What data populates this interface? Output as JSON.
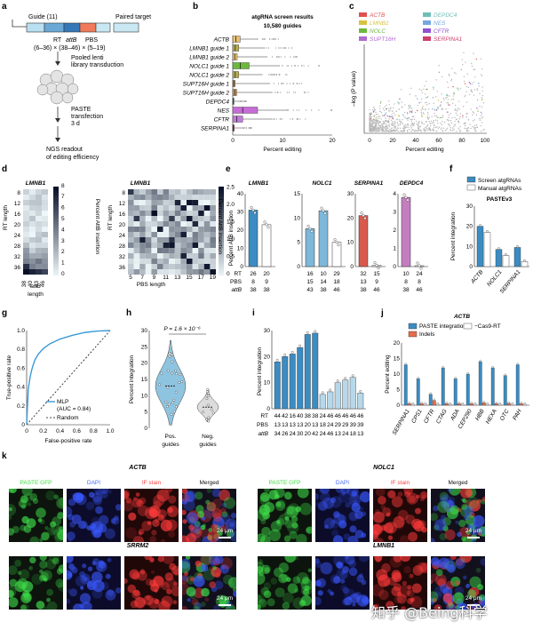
{
  "panel_letters": [
    "a",
    "b",
    "c",
    "d",
    "e",
    "f",
    "g",
    "h",
    "i",
    "j",
    "k"
  ],
  "panel_a": {
    "guide": "Guide (11)",
    "paired": "Paired target",
    "rt": "RT",
    "attb": "attB",
    "pbs": "PBS",
    "combo": "(6–36) × (38–46) × (5–19)",
    "step1": "Pooled lenti",
    "step1b": "library transduction",
    "step2": "PASTE",
    "step2b": "transfection",
    "step2c": "3 d",
    "step3": "NGS readout",
    "step3b": "of editing efficiency"
  },
  "chart_data": [
    {
      "id": "b",
      "type": "box",
      "title": "atgRNA screen results",
      "subtitle": "10,580 guides",
      "xlabel": "Percent editing",
      "xlim": [
        0,
        20
      ],
      "xticks": [
        "0",
        "10",
        "20"
      ],
      "categories": [
        "ACTB",
        "LMNB1 guide 1",
        "LMNB1 guide 2",
        "NOLC1 guide 1",
        "NOLC1 guide 2",
        "SUPT16H guide 1",
        "SUPT16H guide 2",
        "DEPDC4",
        "NES",
        "CFTR",
        "SERPINA1"
      ],
      "colors": [
        "#e8c070",
        "#b6ad52",
        "#e8c070",
        "#6cb83e",
        "#b6ad52",
        "#c99a5a",
        "#c99a5a",
        "#7ccdc4",
        "#c86cd8",
        "#c27ad8",
        "#c14d8a"
      ],
      "medians": [
        0.6,
        0.5,
        0.4,
        1.5,
        0.5,
        0.2,
        0.4,
        0.1,
        2.0,
        0.8,
        0.1
      ],
      "q3": [
        1.5,
        1.2,
        0.9,
        3.3,
        1.2,
        0.5,
        0.8,
        0.2,
        5.0,
        2.0,
        0.3
      ],
      "whisker_max": [
        5.0,
        6.5,
        7.0,
        9.5,
        6.0,
        7.5,
        8.0,
        1.5,
        11.0,
        8.0,
        2.0
      ]
    },
    {
      "id": "c",
      "type": "scatter",
      "xlabel": "Percent editing",
      "ylabel": "–log (P value)",
      "xticks": [
        "0",
        "20",
        "40",
        "60",
        "80",
        "100"
      ],
      "legend": [
        "ACTB",
        "DEPDC4",
        "LMNB1",
        "NES",
        "NOLC",
        "CFTR",
        "SUPT16H",
        "SERPINA1"
      ],
      "legend_colors": [
        "#e05050",
        "#6fbfb8",
        "#d8c340",
        "#74a8e0",
        "#6cb83e",
        "#9050d0",
        "#b06ad0",
        "#d0406c"
      ]
    },
    {
      "id": "e",
      "type": "bar",
      "ylabel": "Percent AttB insertion",
      "row_labels": [
        "RT",
        "PBS",
        "attB"
      ],
      "subplots": [
        {
          "gene": "LMNB1",
          "ylim": [
            0,
            40
          ],
          "yticks": [
            "0",
            "10",
            "20",
            "30",
            "40"
          ],
          "values": [
            31,
            23
          ],
          "colors": [
            "#3b8cc2",
            "#ffffff"
          ],
          "rt": [
            "26",
            "20"
          ],
          "pbs": [
            "8",
            "9"
          ],
          "attb": [
            "38",
            "38"
          ]
        },
        {
          "gene": "NOLC1",
          "ylim": [
            0,
            15
          ],
          "yticks": [
            "0",
            "5",
            "10",
            "15"
          ],
          "values": [
            7.8,
            11.5,
            5.0
          ],
          "colors": [
            "#7db7d9",
            "#7db7d9",
            "#ffffff"
          ],
          "rt": [
            "16",
            "10",
            "29"
          ],
          "pbs": [
            "15",
            "14",
            "18"
          ],
          "attb": [
            "43",
            "38",
            "46"
          ]
        },
        {
          "gene": "SERPINA1",
          "ylim": [
            0,
            30
          ],
          "yticks": [
            "0",
            "10",
            "20",
            "30"
          ],
          "values": [
            21,
            0.5
          ],
          "colors": [
            "#d9594c",
            "#ffffff"
          ],
          "rt": [
            "32",
            "15"
          ],
          "pbs": [
            "13",
            "9"
          ],
          "attb": [
            "38",
            "46"
          ]
        },
        {
          "gene": "DEPDC4",
          "ylim": [
            0,
            4
          ],
          "yticks": [
            "0",
            "1",
            "2",
            "3",
            "4"
          ],
          "values": [
            3.8,
            0.05
          ],
          "colors": [
            "#c47ec0",
            "#ffffff"
          ],
          "rt": [
            "10",
            "24"
          ],
          "pbs": [
            "8",
            "8"
          ],
          "attb": [
            "38",
            "46"
          ]
        }
      ]
    },
    {
      "id": "f",
      "type": "bar",
      "title": "PASTEv3",
      "ylabel": "Percent integration",
      "ylim": [
        0,
        30
      ],
      "yticks": [
        "0",
        "10",
        "20",
        "30"
      ],
      "categories": [
        "ACTB",
        "NOLC1",
        "SERPINA1"
      ],
      "legend": [
        "Screen atgRNAs",
        "Manual atgRNAs"
      ],
      "series": [
        {
          "name": "Screen atgRNAs",
          "values": [
            20,
            8.5,
            9.5
          ],
          "color": "#3b8cc2"
        },
        {
          "name": "Manual atgRNAs",
          "values": [
            17,
            5.5,
            2.5
          ],
          "color": "#ffffff"
        }
      ]
    },
    {
      "id": "g",
      "type": "line",
      "xlabel": "False-positive rate",
      "ylabel": "True-positive rate",
      "xticks": [
        "0",
        "0.2",
        "0.4",
        "0.6",
        "0.8",
        "1.0"
      ],
      "yticks": [
        "0",
        "0.2",
        "0.4",
        "0.6",
        "0.8",
        "1.0"
      ],
      "legend": [
        "MLP",
        "(AUC = 0.84)",
        "Random"
      ],
      "x": [
        0,
        0.01,
        0.02,
        0.04,
        0.06,
        0.08,
        0.1,
        0.14,
        0.2,
        0.28,
        0.4,
        0.55,
        0.7,
        0.85,
        1.0
      ],
      "y": [
        0,
        0.2,
        0.38,
        0.5,
        0.58,
        0.64,
        0.69,
        0.75,
        0.81,
        0.86,
        0.91,
        0.95,
        0.98,
        0.995,
        1.0
      ]
    },
    {
      "id": "h",
      "type": "violin",
      "ylabel": "Percent integration",
      "annotation": "P = 1.6 × 10⁻⁶",
      "categories": [
        "Pos. guides",
        "Neg. guides"
      ],
      "yticks": [
        "0",
        "5",
        "10",
        "15",
        "20",
        "25",
        "30"
      ],
      "ylim": [
        0,
        30
      ],
      "medians": [
        13,
        6.5
      ],
      "ranges": [
        [
          1,
          27
        ],
        [
          2,
          12
        ]
      ]
    },
    {
      "id": "i",
      "type": "bar",
      "ylabel": "Percent integration",
      "ylim": [
        0,
        30
      ],
      "yticks": [
        "0",
        "10",
        "20",
        "30"
      ],
      "values": [
        18,
        20,
        21,
        23.5,
        28.5,
        29,
        5.5,
        6.5,
        10,
        11,
        12,
        6
      ],
      "colors": [
        "#3b8cc2",
        "#3b8cc2",
        "#3b8cc2",
        "#3b8cc2",
        "#3b8cc2",
        "#3b8cc2",
        "#b6d8ea",
        "#b6d8ea",
        "#b6d8ea",
        "#b6d8ea",
        "#b6d8ea",
        "#b6d8ea"
      ],
      "rt": [
        "44",
        "42",
        "16",
        "40",
        "38",
        "38",
        "24",
        "46",
        "46",
        "46",
        "46",
        "46"
      ],
      "pbs": [
        "13",
        "13",
        "13",
        "13",
        "20",
        "13",
        "18",
        "24",
        "29",
        "29",
        "39",
        "39"
      ],
      "attb": [
        "34",
        "26",
        "24",
        "30",
        "20",
        "42",
        "24",
        "46",
        "13",
        "24",
        "18",
        "13"
      ],
      "row_labels": [
        "RT",
        "PBS",
        "attB"
      ]
    },
    {
      "id": "j",
      "type": "bar",
      "title": "ACTB",
      "ylabel": "Percent editing",
      "ylim": [
        0,
        20
      ],
      "yticks": [
        "0",
        "5",
        "10",
        "15",
        "20"
      ],
      "categories": [
        "SERPINA1",
        "CPS1",
        "CFTR",
        "CTAG",
        "ADA",
        "CEP290",
        "HBB",
        "HEXA",
        "OTC",
        "PAH"
      ],
      "legend": [
        "PASTE integration",
        "Indels",
        "−Cas9-RT"
      ],
      "series": [
        {
          "name": "PASTE integration",
          "values": [
            13,
            8.5,
            3.5,
            12,
            8.5,
            10,
            14,
            12,
            9.5,
            13
          ],
          "color": "#3b8cc2"
        },
        {
          "name": "Indels",
          "values": [
            0.5,
            0.5,
            1.5,
            0.5,
            0.5,
            0.5,
            0.8,
            0.5,
            0.6,
            0.5
          ],
          "color": "#e66c4c"
        },
        {
          "name": "−Cas9-RT",
          "values": [
            0.3,
            0.3,
            0.3,
            0.3,
            0.3,
            0.3,
            0.3,
            0.3,
            0.3,
            0.3
          ],
          "color": "#ffffff"
        }
      ]
    }
  ],
  "panel_d": {
    "heatmap1_title": "LMNB1",
    "heatmap2_title": "LMNB1",
    "ylabel": "RT length",
    "xlabel1": "attB",
    "xlabel1b": "length",
    "xlabel2": "PBS length",
    "cbar1_label": "Percent AttB insertion",
    "cbar2_label": "Percent AttB insertion",
    "cbar1_ticks": [
      "0",
      "1",
      "2",
      "3",
      "4",
      "5",
      "6",
      "7",
      "8"
    ],
    "cbar2_ticks": [
      "0",
      "0.5",
      "1.0",
      "1.5",
      "2.0",
      "2.5"
    ],
    "rt_ticks": [
      "8",
      "12",
      "16",
      "20",
      "24",
      "28",
      "32",
      "36"
    ],
    "attb_ticks": [
      "38",
      "40",
      "43",
      "46"
    ],
    "pbs_ticks": [
      "5",
      "7",
      "9",
      "11",
      "13",
      "15",
      "17",
      "19"
    ]
  },
  "panel_k": {
    "group1": "ACTB",
    "group2": "NOLC1",
    "group3": "SRRM2",
    "group4": "LMNB1",
    "headers": [
      "PASTE GFP",
      "DAPI",
      "IF stain",
      "Merged"
    ],
    "header_colors": [
      "#3ddc3d",
      "#4a6bff",
      "#ff4040",
      "#111111"
    ],
    "scale": "24 μm",
    "watermark": "知乎 @Being科学"
  }
}
